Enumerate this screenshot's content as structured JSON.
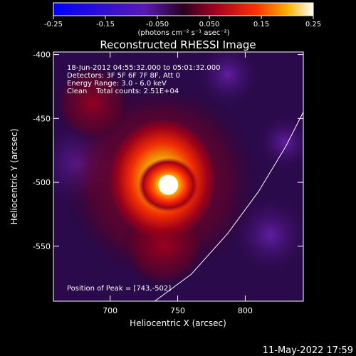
{
  "chart_data": {
    "type": "heatmap",
    "title": "Reconstructed RHESSI Image",
    "xlabel": "Heliocentric X (arcsec)",
    "ylabel": "Heliocentric Y (arcsec)",
    "xlim": [
      658,
      843
    ],
    "ylim": [
      -593,
      -398
    ],
    "x_ticks": [
      700,
      750,
      800
    ],
    "y_ticks": [
      -400,
      -450,
      -500,
      -550
    ],
    "colorbar": {
      "range": [
        -0.25,
        0.25
      ],
      "ticks": [
        -0.25,
        -0.15,
        -0.05,
        0.05,
        0.15,
        0.25
      ],
      "tick_labels": [
        "-0.25",
        "-0.15",
        "-0.050",
        "0.050",
        "0.15",
        "0.25"
      ],
      "unit_label": "(photons cm⁻² s⁻¹ asec⁻²)",
      "colormap": "blue-purple-red-yellow-white"
    },
    "peak": {
      "x": 743,
      "y": -502,
      "value": 0.25
    },
    "info_lines": [
      "18-Jun-2012 04:55:32.000 to 05:01:32.000",
      "Detectors: 3F 5F 6F 7F 8F, Att 0",
      "Energy Range: 3.0 - 6.0 keV",
      "Clean    Total counts: 2.51E+04"
    ],
    "peak_label": "Position of Peak = [743,-502]",
    "limb": [
      [
        733,
        -593
      ],
      [
        760,
        -572
      ],
      [
        787,
        -540
      ],
      [
        810,
        -507
      ],
      [
        830,
        -472
      ],
      [
        843,
        -445
      ]
    ]
  },
  "footer": {
    "timestamp": "11-May-2022 17:59"
  }
}
